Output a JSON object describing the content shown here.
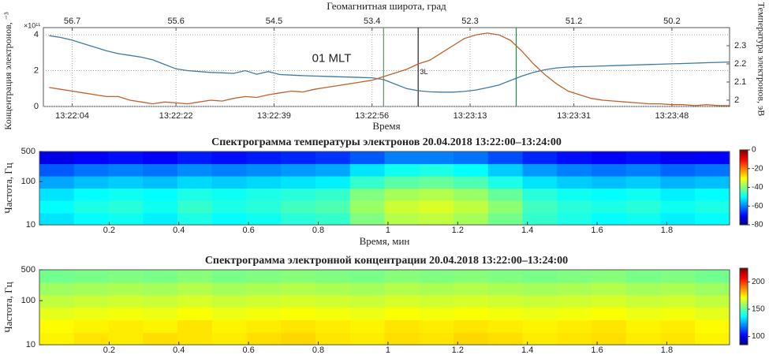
{
  "chart_data": [
    {
      "type": "line",
      "top_label": "Геомагнитная широта, град",
      "top_ticks": [
        56.7,
        55.6,
        54.5,
        53.4,
        52.3,
        51.2,
        50.2
      ],
      "xlabel": "Время",
      "ylabel": "Концентрация электронов, ⁻³",
      "y_multiplier": "×10¹¹",
      "y2label": "Температура электронов, эВ",
      "x": [
        "13:22:00",
        "13:22:02",
        "13:22:04",
        "13:22:06",
        "13:22:08",
        "13:22:10",
        "13:22:12",
        "13:22:14",
        "13:22:16",
        "13:22:18",
        "13:22:20",
        "13:22:22",
        "13:22:24",
        "13:22:26",
        "13:22:28",
        "13:22:30",
        "13:22:32",
        "13:22:34",
        "13:22:36",
        "13:22:38",
        "13:22:40",
        "13:22:42",
        "13:22:44",
        "13:22:46",
        "13:22:48",
        "13:22:50",
        "13:22:52",
        "13:22:54",
        "13:22:56",
        "13:22:58",
        "13:23:00",
        "13:23:02",
        "13:23:04",
        "13:23:06",
        "13:23:08",
        "13:23:10",
        "13:23:12",
        "13:23:14",
        "13:23:16",
        "13:23:18",
        "13:23:20",
        "13:23:22",
        "13:23:24",
        "13:23:26",
        "13:23:28",
        "13:23:30",
        "13:23:32",
        "13:23:34",
        "13:23:36",
        "13:23:38",
        "13:23:40",
        "13:23:42",
        "13:23:44",
        "13:23:46",
        "13:23:48",
        "13:23:50",
        "13:23:52",
        "13:23:54",
        "13:23:56",
        "13:23:58"
      ],
      "xlim": [
        "13:21:59",
        "13:23:58"
      ],
      "xticks": [
        "13:22:04",
        "13:22:22",
        "13:22:39",
        "13:22:56",
        "13:23:13",
        "13:23:31",
        "13:23:48"
      ],
      "ylim": [
        0,
        4.4
      ],
      "yticks": [
        0,
        2,
        4
      ],
      "y2lim": [
        1.965,
        2.4
      ],
      "y2ticks": [
        2,
        2.1,
        2.2,
        2.3
      ],
      "grid": true,
      "series": [
        {
          "color": "#3b7ba6",
          "values": [
            3.95,
            3.85,
            3.7,
            3.5,
            3.3,
            3.1,
            2.95,
            2.85,
            2.75,
            2.6,
            2.35,
            2.1,
            2.0,
            1.95,
            1.9,
            1.88,
            1.85,
            2.0,
            1.8,
            1.95,
            1.78,
            1.75,
            1.72,
            1.7,
            1.68,
            1.66,
            1.64,
            1.62,
            1.6,
            1.5,
            1.25,
            1.0,
            0.88,
            0.82,
            0.8,
            0.8,
            0.84,
            0.92,
            1.05,
            1.2,
            1.45,
            1.7,
            1.9,
            2.05,
            2.15,
            2.2,
            2.22,
            2.24,
            2.26,
            2.28,
            2.3,
            2.32,
            2.34,
            2.36,
            2.38,
            2.4,
            2.42,
            2.44,
            2.46,
            2.48
          ]
        },
        {
          "color": "#c0622b",
          "axis": "y2",
          "values": [
            2.07,
            2.06,
            2.05,
            2.04,
            2.03,
            2.02,
            2.02,
            2.0,
            1.99,
            1.98,
            1.99,
            1.985,
            1.98,
            1.99,
            2.0,
            1.995,
            2.01,
            2.02,
            2.015,
            2.03,
            2.04,
            2.05,
            2.045,
            2.06,
            2.07,
            2.08,
            2.09,
            2.1,
            2.11,
            2.13,
            2.15,
            2.17,
            2.2,
            2.22,
            2.26,
            2.3,
            2.34,
            2.36,
            2.37,
            2.36,
            2.33,
            2.27,
            2.2,
            2.14,
            2.09,
            2.05,
            2.03,
            2.01,
            2.0,
            1.995,
            1.99,
            1.985,
            1.98,
            1.98,
            1.975,
            1.975,
            1.97,
            1.975,
            1.97,
            1.97
          ]
        }
      ],
      "vlines": [
        {
          "x": "13:22:58",
          "color": "#6f9a6f"
        },
        {
          "x": "13:23:04",
          "color": "#333333"
        },
        {
          "x": "13:23:21",
          "color": "#2e8b57"
        }
      ],
      "annotations": [
        {
          "text": "01 MLT",
          "x": "13:22:49",
          "y": 2.67,
          "color": "#8b1a8b"
        },
        {
          "text": "3L",
          "x": "13:23:05",
          "y": 1.9,
          "color": "#333333"
        }
      ]
    },
    {
      "type": "heatmap",
      "title": "Спектрограмма температуры электронов  20.04.2018  13:22:00–13:24:00",
      "xlabel": "Время, мин",
      "ylabel": "Частота, Гц",
      "xlim": [
        0,
        1.98
      ],
      "xticks": [
        0.2,
        0.4,
        0.6,
        0.8,
        1,
        1.2,
        1.4,
        1.6,
        1.8
      ],
      "ylim": [
        10,
        500
      ],
      "yticks": [
        10,
        100,
        500
      ],
      "ylog": true,
      "y_edges": [
        10,
        19,
        37,
        71,
        136,
        261,
        500
      ],
      "z": [
        [
          -52,
          -50,
          -49,
          -51,
          -48,
          -50,
          -49,
          -47,
          -46,
          -40,
          -36,
          -35,
          -37,
          -41,
          -46,
          -48,
          -50,
          -49,
          -51,
          -50
        ],
        [
          -50,
          -48,
          -47,
          -49,
          -46,
          -48,
          -47,
          -45,
          -44,
          -38,
          -34,
          -33,
          -35,
          -39,
          -45,
          -47,
          -48,
          -47,
          -49,
          -48
        ],
        [
          -52,
          -50,
          -49,
          -50,
          -48,
          -49,
          -48,
          -47,
          -46,
          -40,
          -37,
          -36,
          -38,
          -42,
          -47,
          -49,
          -50,
          -49,
          -51,
          -50
        ],
        [
          -57,
          -55,
          -54,
          -55,
          -53,
          -54,
          -53,
          -52,
          -51,
          -46,
          -43,
          -42,
          -44,
          -48,
          -52,
          -54,
          -55,
          -54,
          -56,
          -55
        ],
        [
          -63,
          -61,
          -60,
          -61,
          -59,
          -60,
          -59,
          -58,
          -57,
          -52,
          -49,
          -48,
          -50,
          -54,
          -58,
          -60,
          -61,
          -60,
          -62,
          -61
        ],
        [
          -72,
          -70,
          -69,
          -70,
          -68,
          -69,
          -68,
          -67,
          -66,
          -63,
          -60,
          -60,
          -61,
          -64,
          -67,
          -69,
          -70,
          -69,
          -71,
          -70
        ]
      ],
      "clim": [
        -80,
        0
      ],
      "cticks": [
        0,
        -20,
        -40,
        -60,
        -80
      ],
      "colormap": "jet"
    },
    {
      "type": "heatmap",
      "title": "Спектрограмма электронной концентрации  20.04.2018  13:22:00–13:24:00",
      "ylabel": "Частота, Гц",
      "xlim": [
        0,
        1.98
      ],
      "xticks": [
        0.2,
        0.4,
        0.6,
        0.8,
        1,
        1.2,
        1.4,
        1.6,
        1.8
      ],
      "ylim": [
        10,
        500
      ],
      "yticks": [
        10,
        100,
        500
      ],
      "ylog": true,
      "y_edges": [
        10,
        19,
        37,
        71,
        136,
        261,
        500
      ],
      "z": [
        [
          174,
          176,
          175,
          177,
          176,
          175,
          177,
          178,
          176,
          175,
          177,
          176,
          178,
          177,
          175,
          176,
          177,
          175,
          176,
          174
        ],
        [
          173,
          174,
          175,
          174,
          176,
          174,
          175,
          176,
          175,
          174,
          176,
          175,
          176,
          175,
          174,
          175,
          176,
          174,
          175,
          173
        ],
        [
          169,
          170,
          171,
          170,
          172,
          170,
          171,
          172,
          171,
          170,
          172,
          171,
          172,
          171,
          170,
          171,
          172,
          170,
          171,
          169
        ],
        [
          164,
          165,
          166,
          165,
          167,
          165,
          166,
          167,
          166,
          165,
          167,
          166,
          167,
          166,
          165,
          166,
          167,
          165,
          166,
          164
        ],
        [
          159,
          160,
          161,
          160,
          162,
          160,
          161,
          162,
          161,
          160,
          162,
          161,
          162,
          161,
          160,
          161,
          162,
          160,
          161,
          159
        ],
        [
          153,
          154,
          155,
          154,
          156,
          154,
          155,
          156,
          155,
          154,
          156,
          155,
          156,
          155,
          154,
          155,
          156,
          154,
          155,
          153
        ]
      ],
      "clim": [
        85,
        225
      ],
      "cticks": [
        200,
        150,
        100
      ],
      "colormap": "jet"
    }
  ]
}
